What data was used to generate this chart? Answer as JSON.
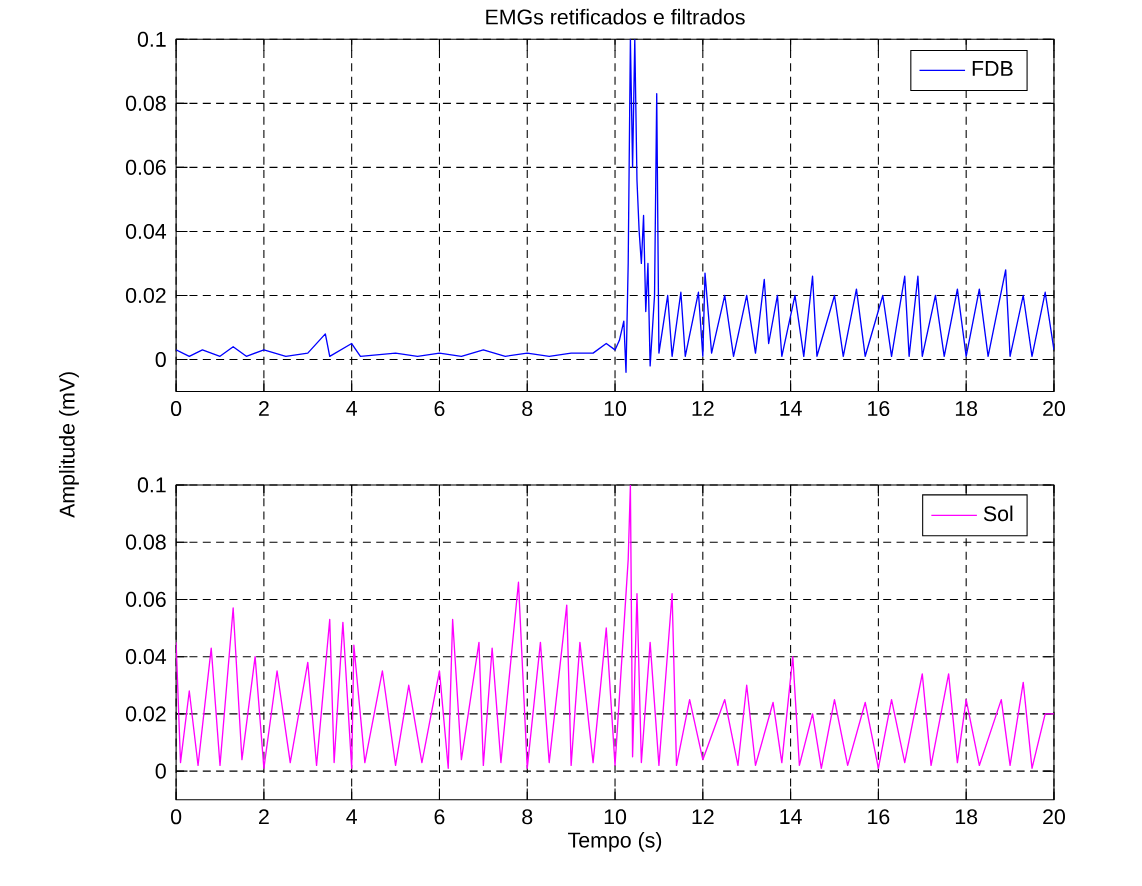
{
  "chart_data": [
    {
      "type": "line",
      "title": "EMGs retificados e filtrados",
      "ylabel": "Amplitude (mV)",
      "xlim": [
        0,
        20
      ],
      "ylim": [
        -0.01,
        0.1
      ],
      "xticks": [
        0,
        2,
        4,
        6,
        8,
        10,
        12,
        14,
        16,
        18,
        20
      ],
      "yticks": [
        0,
        0.02,
        0.04,
        0.06,
        0.08,
        0.1
      ],
      "grid": true,
      "legend": "top right",
      "marker": "none",
      "line_style": "solid",
      "series": [
        {
          "name": "FDB",
          "color": "#0000ff",
          "x": [
            0,
            0.3,
            0.6,
            1,
            1.3,
            1.6,
            2,
            2.5,
            3,
            3.4,
            3.5,
            4,
            4.2,
            5,
            5.5,
            6,
            6.5,
            7,
            7.5,
            8,
            8.5,
            9,
            9.5,
            9.8,
            10,
            10.1,
            10.2,
            10.25,
            10.3,
            10.35,
            10.4,
            10.45,
            10.5,
            10.55,
            10.6,
            10.65,
            10.7,
            10.75,
            10.8,
            10.9,
            10.95,
            11,
            11.2,
            11.3,
            11.5,
            11.6,
            11.9,
            12,
            12.05,
            12.2,
            12.5,
            12.7,
            13,
            13.2,
            13.4,
            13.5,
            13.7,
            13.8,
            14.1,
            14.3,
            14.5,
            14.6,
            15,
            15.2,
            15.5,
            15.7,
            16.1,
            16.3,
            16.6,
            16.7,
            16.9,
            17,
            17.3,
            17.5,
            17.8,
            18,
            18.3,
            18.5,
            18.9,
            19,
            19.3,
            19.5,
            19.8,
            20
          ],
          "values": [
            0.003,
            0.001,
            0.003,
            0.001,
            0.004,
            0.001,
            0.003,
            0.001,
            0.002,
            0.008,
            0.001,
            0.005,
            0.001,
            0.002,
            0.001,
            0.002,
            0.001,
            0.003,
            0.001,
            0.002,
            0.001,
            0.002,
            0.002,
            0.005,
            0.003,
            0.006,
            0.012,
            -0.004,
            0.03,
            0.1,
            0.06,
            0.1,
            0.056,
            0.04,
            0.03,
            0.045,
            0.015,
            0.03,
            -0.002,
            0.02,
            0.083,
            0.002,
            0.02,
            0.001,
            0.021,
            0.001,
            0.021,
            0.001,
            0.027,
            0.002,
            0.02,
            0.001,
            0.02,
            0.002,
            0.025,
            0.005,
            0.02,
            0.001,
            0.02,
            0.001,
            0.026,
            0.001,
            0.02,
            0.001,
            0.022,
            0.001,
            0.02,
            0.001,
            0.026,
            0.001,
            0.026,
            0.001,
            0.02,
            0.001,
            0.022,
            0.001,
            0.022,
            0.001,
            0.028,
            0.001,
            0.02,
            0.001,
            0.021,
            0.003
          ]
        }
      ]
    },
    {
      "type": "line",
      "xlabel": "Tempo (s)",
      "xlim": [
        0,
        20
      ],
      "ylim": [
        -0.01,
        0.1
      ],
      "xticks": [
        0,
        2,
        4,
        6,
        8,
        10,
        12,
        14,
        16,
        18,
        20
      ],
      "yticks": [
        0,
        0.02,
        0.04,
        0.06,
        0.08,
        0.1
      ],
      "grid": true,
      "legend": "top right",
      "marker": "none",
      "line_style": "solid",
      "series": [
        {
          "name": "Sol",
          "color": "#ff00ff",
          "x": [
            0,
            0.1,
            0.3,
            0.5,
            0.8,
            1,
            1.3,
            1.5,
            1.8,
            2,
            2.3,
            2.6,
            3,
            3.2,
            3.5,
            3.6,
            3.8,
            4,
            4.05,
            4.3,
            4.7,
            5,
            5.3,
            5.6,
            6,
            6.2,
            6.3,
            6.5,
            6.9,
            7,
            7.2,
            7.4,
            7.8,
            8,
            8.3,
            8.5,
            8.9,
            9,
            9.2,
            9.5,
            9.8,
            10,
            10.3,
            10.35,
            10.4,
            10.5,
            10.6,
            10.8,
            11,
            11.3,
            11.4,
            11.7,
            12,
            12.5,
            12.8,
            13,
            13.2,
            13.6,
            13.8,
            14.05,
            14.2,
            14.5,
            14.7,
            15,
            15.3,
            15.7,
            16,
            16.3,
            16.6,
            17,
            17.2,
            17.6,
            17.8,
            18,
            18.3,
            18.8,
            19,
            19.3,
            19.5,
            19.8,
            20
          ],
          "values": [
            0.045,
            0.003,
            0.028,
            0.002,
            0.043,
            0.002,
            0.057,
            0.004,
            0.04,
            0.001,
            0.035,
            0.003,
            0.038,
            0.002,
            0.053,
            0.003,
            0.052,
            0.001,
            0.044,
            0.003,
            0.035,
            0.002,
            0.03,
            0.003,
            0.035,
            0.001,
            0.053,
            0.004,
            0.045,
            0.002,
            0.043,
            0.003,
            0.066,
            0.001,
            0.045,
            0.003,
            0.058,
            0.002,
            0.045,
            0.003,
            0.05,
            0.002,
            0.074,
            0.1,
            0.005,
            0.062,
            0.003,
            0.045,
            0.002,
            0.062,
            0.002,
            0.025,
            0.004,
            0.025,
            0.002,
            0.03,
            0.002,
            0.024,
            0.003,
            0.04,
            0.002,
            0.02,
            0.001,
            0.025,
            0.002,
            0.024,
            0.001,
            0.025,
            0.003,
            0.034,
            0.002,
            0.034,
            0.003,
            0.025,
            0.002,
            0.025,
            0.002,
            0.031,
            0.001,
            0.02,
            0.02
          ]
        }
      ]
    }
  ]
}
